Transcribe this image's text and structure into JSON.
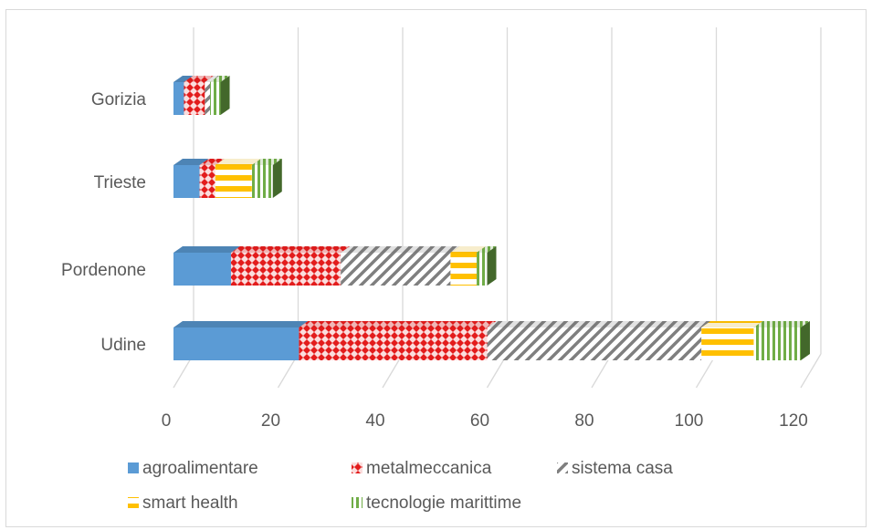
{
  "chart_data": {
    "type": "bar",
    "orientation": "horizontal",
    "stacked": true,
    "style": "3d",
    "categories": [
      "Udine",
      "Pordenone",
      "Trieste",
      "Gorizia"
    ],
    "series": [
      {
        "name": "agroalimentare",
        "values": [
          24,
          11,
          5,
          2
        ],
        "color": "#5b9bd5",
        "pattern": "solid"
      },
      {
        "name": "metalmeccanica",
        "values": [
          36,
          21,
          3,
          4
        ],
        "color": "#e31c1c",
        "pattern": "checker"
      },
      {
        "name": "sistema casa",
        "values": [
          41,
          21,
          0,
          1
        ],
        "color": "#7f7f7f",
        "pattern": "diagonal"
      },
      {
        "name": "smart health",
        "values": [
          10,
          5,
          7,
          0
        ],
        "color": "#ffc000",
        "pattern": "horizontal-stripes"
      },
      {
        "name": "tecnologie marittime",
        "values": [
          9,
          2,
          4,
          2
        ],
        "color": "#70ad47",
        "pattern": "vertical-stripes"
      }
    ],
    "xlim": [
      0,
      120
    ],
    "xticks": [
      "0",
      "20",
      "40",
      "60",
      "80",
      "100",
      "120"
    ],
    "grid": true,
    "legend_position": "bottom"
  }
}
